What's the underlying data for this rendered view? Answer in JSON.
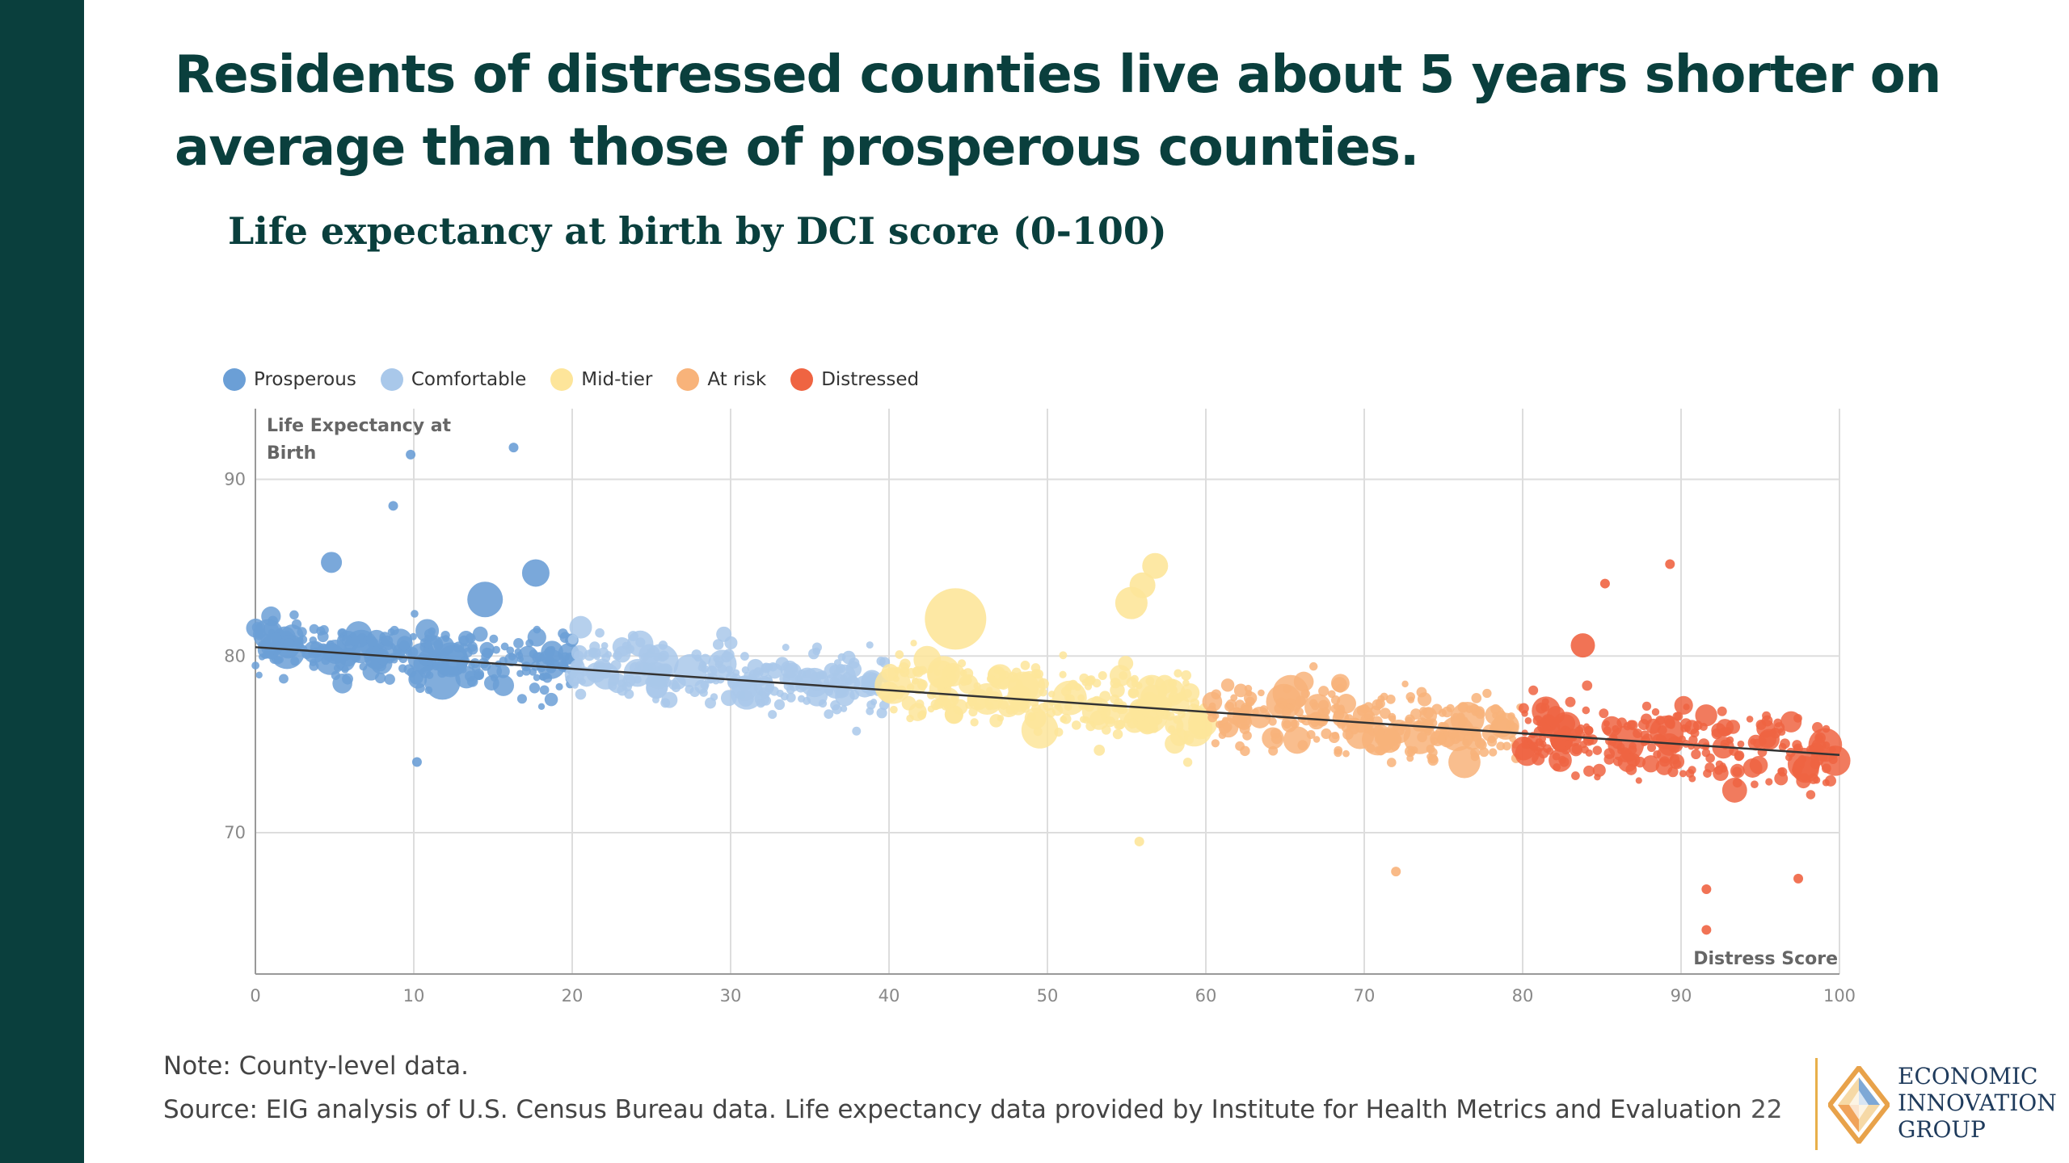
{
  "slide": {
    "headline_line1": "Residents of distressed counties live about 5 years shorter on",
    "headline_line2": "average than those of prosperous counties.",
    "subtitle": "Life expectancy at birth by DCI score (0-100)",
    "note": "Note: County-level data.",
    "source": "Source: EIG analysis of U.S. Census Bureau data. Life expectancy data provided by Institute for Health Metrics and Evaluation",
    "page_number": "22",
    "logo": {
      "line1": "ECONOMIC",
      "line2": "INNOVATION",
      "line3": "GROUP"
    }
  },
  "colors": {
    "sidebar": "#0a3f3d",
    "headline": "#0a3f3d",
    "prosperous": "#6b9fd6",
    "comfortable": "#a9c8ea",
    "mid_tier": "#fde59a",
    "at_risk": "#f8b37a",
    "distressed": "#ef6442",
    "trendline": "#333333"
  },
  "chart_data": {
    "type": "scatter",
    "title": "Life expectancy at birth by DCI score (0-100)",
    "xlabel": "Distress Score",
    "ylabel": "Life Expectancy at Birth",
    "xlim": [
      0,
      100
    ],
    "ylim": [
      62,
      94
    ],
    "xticks": [
      0,
      10,
      20,
      30,
      40,
      50,
      60,
      70,
      80,
      90,
      100
    ],
    "yticks": [
      70,
      80,
      90
    ],
    "grid": true,
    "legend_position": "top-left",
    "series": [
      {
        "name": "Prosperous",
        "color": "#6b9fd6",
        "x_range": [
          0,
          20
        ],
        "mean_y_start": 80.6,
        "mean_y_end": 79.6,
        "spread": 1.6
      },
      {
        "name": "Comfortable",
        "color": "#a9c8ea",
        "x_range": [
          20,
          40
        ],
        "mean_y_start": 79.6,
        "mean_y_end": 78.3,
        "spread": 1.7
      },
      {
        "name": "Mid-tier",
        "color": "#fde59a",
        "x_range": [
          40,
          60
        ],
        "mean_y_start": 78.3,
        "mean_y_end": 76.9,
        "spread": 1.8
      },
      {
        "name": "At risk",
        "color": "#f8b37a",
        "x_range": [
          60,
          80
        ],
        "mean_y_start": 76.9,
        "mean_y_end": 75.5,
        "spread": 1.8
      },
      {
        "name": "Distressed",
        "color": "#ef6442",
        "x_range": [
          80,
          100
        ],
        "mean_y_start": 75.5,
        "mean_y_end": 74.4,
        "spread": 2.0
      }
    ],
    "highlighted_points": [
      {
        "x": 9.8,
        "y": 91.4,
        "series": "Prosperous"
      },
      {
        "x": 16.3,
        "y": 91.8,
        "series": "Prosperous"
      },
      {
        "x": 8.7,
        "y": 88.5,
        "series": "Prosperous"
      },
      {
        "x": 4.8,
        "y": 85.3,
        "series": "Prosperous"
      },
      {
        "x": 17.7,
        "y": 84.7,
        "series": "Prosperous"
      },
      {
        "x": 14.5,
        "y": 83.2,
        "series": "Prosperous"
      },
      {
        "x": 10.2,
        "y": 74.0,
        "series": "Prosperous"
      },
      {
        "x": 44.2,
        "y": 82.1,
        "series": "Mid-tier"
      },
      {
        "x": 56.8,
        "y": 85.1,
        "series": "Mid-tier"
      },
      {
        "x": 56.0,
        "y": 84.0,
        "series": "Mid-tier"
      },
      {
        "x": 55.3,
        "y": 83.0,
        "series": "Mid-tier"
      },
      {
        "x": 55.8,
        "y": 69.5,
        "series": "Mid-tier"
      },
      {
        "x": 72.0,
        "y": 67.8,
        "series": "At risk"
      },
      {
        "x": 83.8,
        "y": 80.6,
        "series": "Distressed"
      },
      {
        "x": 85.2,
        "y": 84.1,
        "series": "Distressed"
      },
      {
        "x": 89.3,
        "y": 85.2,
        "series": "Distressed"
      },
      {
        "x": 91.6,
        "y": 64.5,
        "series": "Distressed"
      },
      {
        "x": 91.6,
        "y": 66.8,
        "series": "Distressed"
      },
      {
        "x": 97.4,
        "y": 67.4,
        "series": "Distressed"
      }
    ],
    "trendline": {
      "x": [
        0,
        100
      ],
      "y": [
        80.5,
        74.4
      ]
    }
  }
}
